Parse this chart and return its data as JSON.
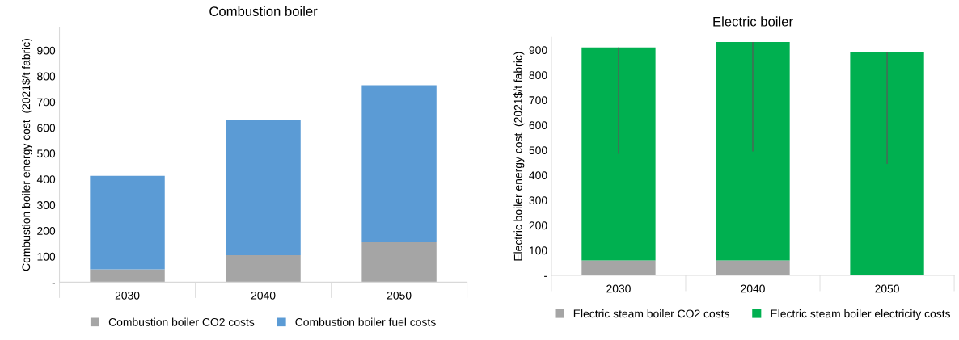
{
  "chart_data": [
    {
      "type": "bar",
      "title": "Combustion boiler",
      "ylabel": "Combustion boiler energy cost  (2021$/t fabric)",
      "categories": [
        "2030",
        "2040",
        "2050"
      ],
      "stacked": true,
      "ylim": [
        0,
        990
      ],
      "yticks": [
        {
          "value": 0,
          "label": "-"
        },
        100,
        200,
        300,
        400,
        500,
        600,
        700,
        800,
        900
      ],
      "legend": "bottom",
      "grid": false,
      "series": [
        {
          "name": "Combustion boiler CO2 costs",
          "color": "#a5a5a5",
          "values": [
            50,
            105,
            155
          ]
        },
        {
          "name": "Combustion boiler fuel costs",
          "color": "#5b9bd5",
          "values": [
            363,
            525,
            610
          ]
        }
      ]
    },
    {
      "type": "bar",
      "title": "Electric boiler",
      "ylabel": "Electric boiler energy cost  (2021$/t fabric)",
      "categories": [
        "2030",
        "2040",
        "2050"
      ],
      "stacked": true,
      "ylim": [
        0,
        950
      ],
      "yticks": [
        {
          "value": 0,
          "label": "-"
        },
        100,
        200,
        300,
        400,
        500,
        600,
        700,
        800,
        900
      ],
      "legend": "bottom",
      "grid": false,
      "series": [
        {
          "name": "Electric steam boiler CO2 costs",
          "color": "#a5a5a5",
          "values": [
            60,
            60,
            0
          ]
        },
        {
          "name": "Electric steam boiler electricity costs",
          "color": "#00b050",
          "values": [
            850,
            872,
            890
          ],
          "errors": [
            [
              485,
              910
            ],
            [
              495,
              932
            ],
            [
              445,
              890
            ]
          ]
        }
      ]
    }
  ]
}
